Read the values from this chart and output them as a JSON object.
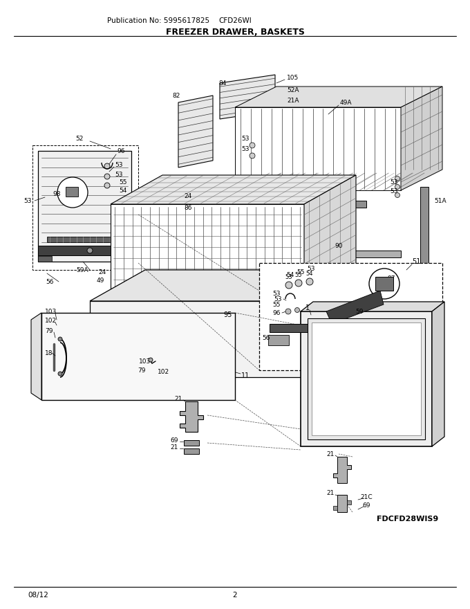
{
  "title": "FREEZER DRAWER, BASKETS",
  "pub_no": "Publication No: 5995617825",
  "model": "CFD26WI",
  "part_no": "FDCFD28WIS9",
  "date": "08/12",
  "page": "2",
  "bg_color": "#ffffff",
  "text_color": "#000000",
  "fig_width": 6.8,
  "fig_height": 8.8,
  "dpi": 100
}
